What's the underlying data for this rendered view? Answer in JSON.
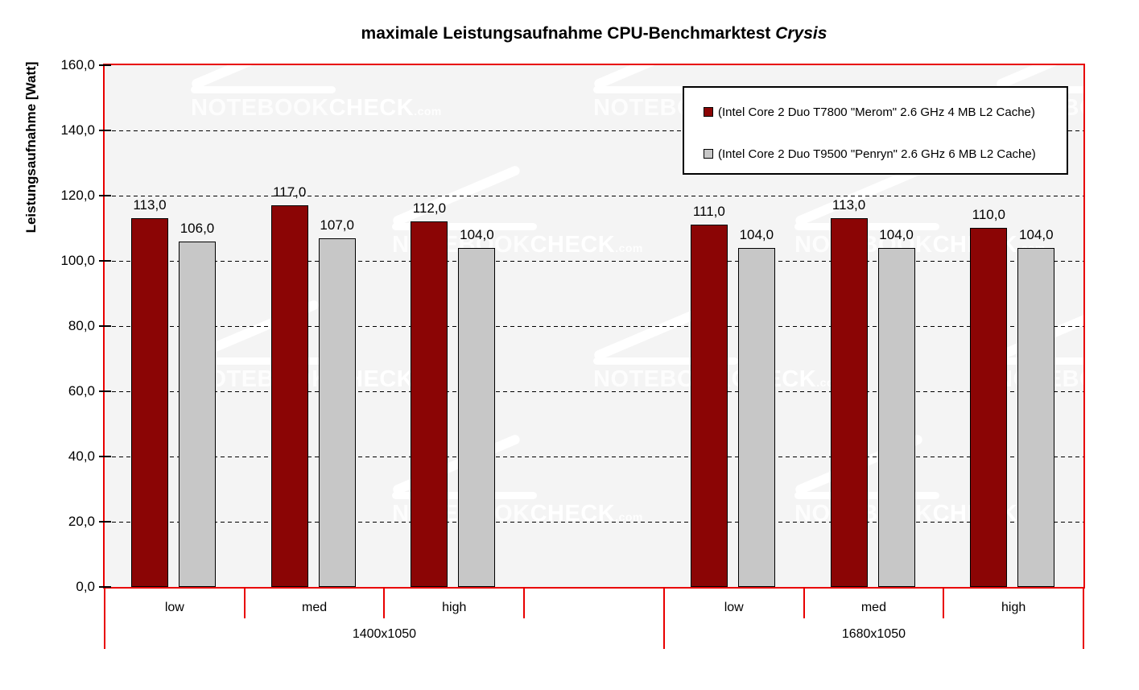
{
  "title": {
    "main": "maximale Leistungsaufnahme CPU-Benchmarktest",
    "emphasis": "Crysis"
  },
  "y_axis": {
    "title": "Leistungsaufnahme [Watt]",
    "tick_labels": [
      "160,0",
      "140,0",
      "120,0",
      "100,0",
      "80,0",
      "60,0",
      "40,0",
      "20,0",
      "0,0"
    ]
  },
  "x_axis": {
    "category_labels": [
      "low",
      "med",
      "high"
    ],
    "group_labels": [
      "1400x1050",
      "1680x1050"
    ]
  },
  "legend": {
    "items": [
      {
        "label": "(Intel Core 2 Duo T7800 \"Merom\" 2.6 GHz 4 MB L2 Cache)",
        "color": "#8B0505"
      },
      {
        "label": "(Intel Core 2 Duo T9500 \"Penryn\" 2.6 GHz 6 MB L2 Cache)",
        "color": "#C7C7C7"
      }
    ]
  },
  "watermark": {
    "part1": "NOTEBOOK",
    "part2": "CHECK",
    "suffix": ".com"
  },
  "colors": {
    "axis_red": "#E80000",
    "series_dark_red": "#8B0505",
    "series_gray": "#C7C7C7",
    "plot_background": "#F4F4F4"
  },
  "chart_data": {
    "type": "bar",
    "title": "maximale Leistungsaufnahme CPU-Benchmarktest Crysis",
    "ylabel": "Leistungsaufnahme [Watt]",
    "ylim": [
      0,
      160
    ],
    "ytick_step": 20,
    "grid": "horizontal dashed black",
    "legend_position": "top-right inside plot",
    "decimal_format": "German comma, one decimal (e.g. 113,0)",
    "groups": [
      {
        "label": "1400x1050",
        "categories": [
          "low",
          "med",
          "high"
        ]
      },
      {
        "label": "1680x1050",
        "categories": [
          "low",
          "med",
          "high"
        ]
      }
    ],
    "series": [
      {
        "name": "(Intel Core 2 Duo T7800 \"Merom\" 2.6 GHz 4 MB L2 Cache)",
        "color": "#8B0505",
        "values": {
          "1400x1050": [
            113.0,
            117.0,
            112.0
          ],
          "1680x1050": [
            111.0,
            113.0,
            110.0
          ]
        }
      },
      {
        "name": "(Intel Core 2 Duo T9500 \"Penryn\" 2.6 GHz 6 MB L2 Cache)",
        "color": "#C7C7C7",
        "values": {
          "1400x1050": [
            106.0,
            107.0,
            104.0
          ],
          "1680x1050": [
            104.0,
            104.0,
            104.0
          ]
        }
      }
    ]
  }
}
